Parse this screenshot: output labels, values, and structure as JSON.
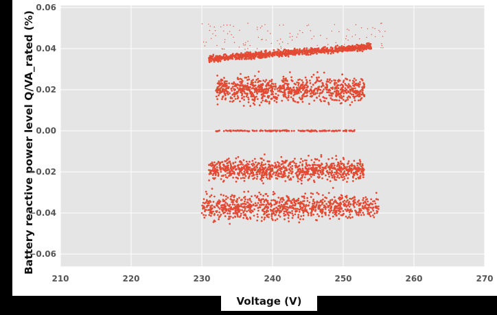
{
  "chart_data": {
    "type": "scatter",
    "title": "",
    "xlabel": "Voltage (V)",
    "ylabel": "Battery reactive power level Q/VA_rated (%)",
    "xlim": [
      210,
      270
    ],
    "ylim": [
      -0.066,
      0.061
    ],
    "xticks": [
      "210",
      "220",
      "230",
      "240",
      "250",
      "260",
      "270"
    ],
    "yticks": [
      "0.06",
      "0.04",
      "0.02",
      "0.00",
      "−0.02",
      "−0.04",
      "−0.06"
    ],
    "grid": true,
    "series": [
      {
        "marker_color": "#E24A33",
        "clusters": [
          {
            "x_range": [
              231,
              254
            ],
            "y_start": 0.035,
            "y_end": 0.041,
            "spread": 0.0015
          },
          {
            "x_range": [
              232,
              253
            ],
            "y_center": 0.02,
            "spread": 0.006
          },
          {
            "x_range": [
              232,
              252
            ],
            "y_center": 0.0,
            "spread": 0.0003
          },
          {
            "x_range": [
              231,
              253
            ],
            "y_center": -0.019,
            "spread": 0.005
          },
          {
            "x_range": [
              230,
              255
            ],
            "y_center": -0.037,
            "spread": 0.006
          },
          {
            "x_range": [
              230,
              256
            ],
            "y_center": 0.046,
            "spread": 0.008,
            "sparse": true
          }
        ]
      }
    ]
  },
  "colors": {
    "plot_background": "#E5E5E5",
    "grid": "#FFFFFF",
    "points": "#E24A33"
  }
}
